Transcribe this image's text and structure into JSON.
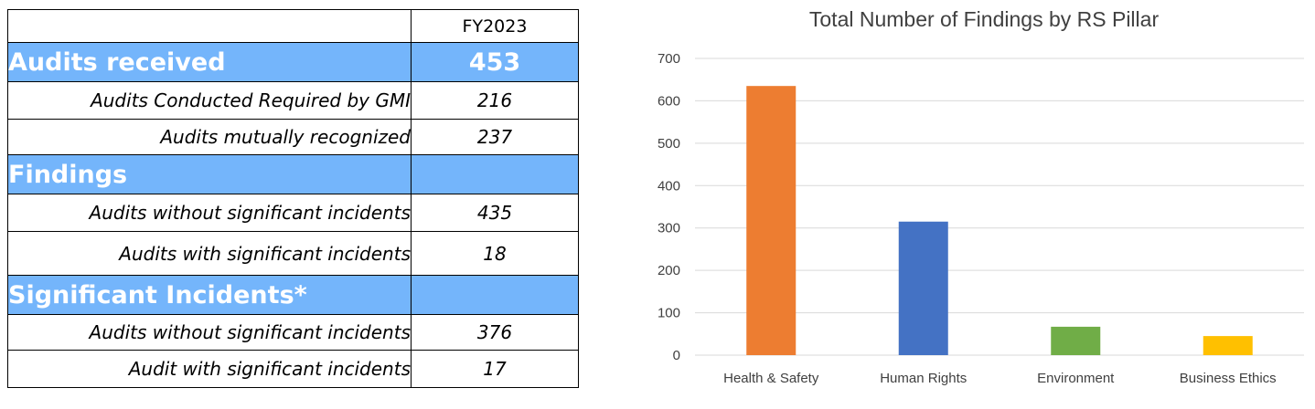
{
  "table": {
    "header_col": "FY2023",
    "rows": [
      {
        "label": "Audits received",
        "value": "453"
      },
      {
        "label": "Audits Conducted Required by GMI",
        "value": "216"
      },
      {
        "label": "Audits mutually recognized",
        "value": "237"
      },
      {
        "label": "Findings",
        "value": ""
      },
      {
        "label": "Audits without significant incidents",
        "value": "435"
      },
      {
        "label": "Audits with significant incidents",
        "value": "18"
      },
      {
        "label": "Significant Incidents*",
        "value": ""
      },
      {
        "label": "Audits without significant incidents",
        "value": "376"
      },
      {
        "label": "Audit with significant incidents",
        "value": "17"
      }
    ],
    "section_color": "#74b5fb"
  },
  "chart_data": {
    "type": "bar",
    "title": "Total Number of Findings by RS Pillar",
    "categories": [
      "Health & Safety",
      "Human Rights",
      "Environment",
      "Business Ethics"
    ],
    "values": [
      635,
      315,
      67,
      45
    ],
    "colors": [
      "#ed7d31",
      "#4472c4",
      "#70ad47",
      "#ffc000"
    ],
    "ylim": [
      0,
      700
    ],
    "yticks": [
      0,
      100,
      200,
      300,
      400,
      500,
      600,
      700
    ],
    "xlabel": "",
    "ylabel": "",
    "grid": true,
    "legend": "none"
  }
}
